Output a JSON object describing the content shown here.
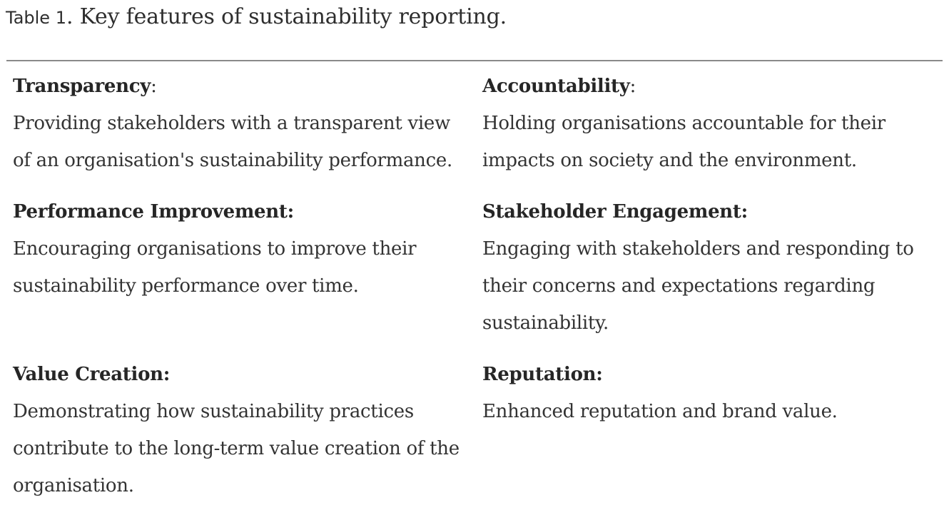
{
  "caption": {
    "label": "Table 1",
    "text": ". Key features of sustainability reporting."
  },
  "rows": [
    [
      {
        "heading": "Transparency",
        "heading_suffix": ":",
        "description": "Providing stakeholders with a transparent view of an organisation's sustainability performance."
      },
      {
        "heading": "Accountability",
        "heading_suffix": ":",
        "description": "Holding organisations accountable for their impacts on society and the environment."
      }
    ],
    [
      {
        "heading": "Performance Improvement:",
        "heading_suffix": "",
        "description": "Encouraging organisations to improve their sustainability performance over time."
      },
      {
        "heading": "Stakeholder Engagement:",
        "heading_suffix": "",
        "description": "Engaging with stakeholders and responding to their concerns and expectations regarding sustainability."
      }
    ],
    [
      {
        "heading": "Value Creation:",
        "heading_suffix": "",
        "description": "Demonstrating how sustainability practices contribute to the long-term value creation of the organisation."
      },
      {
        "heading": "Reputation:",
        "heading_suffix": "",
        "description": "Enhanced reputation and brand value."
      }
    ]
  ]
}
